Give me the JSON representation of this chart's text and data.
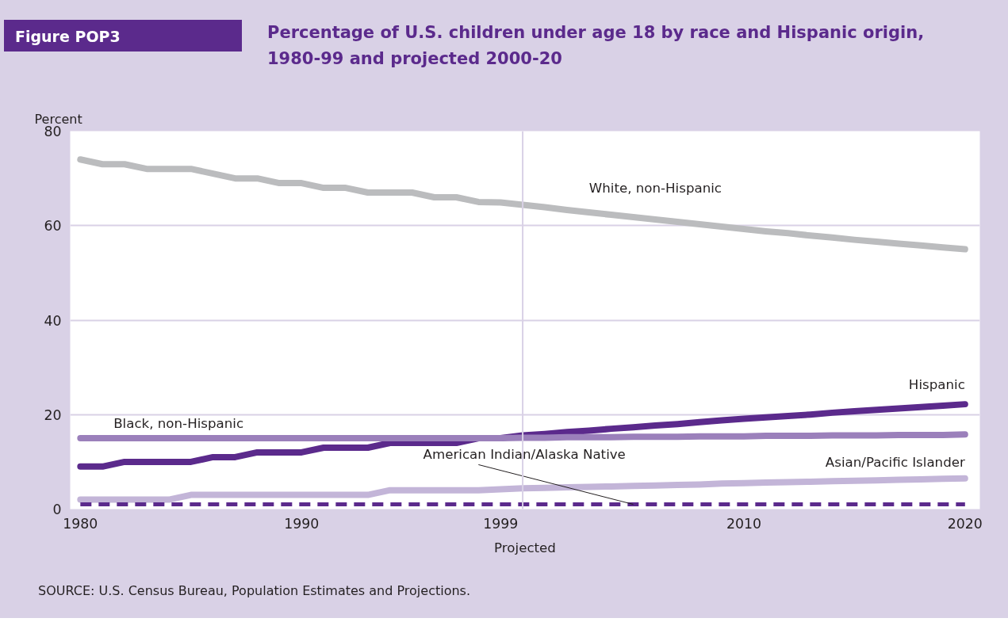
{
  "chart_data": {
    "type": "line",
    "subtitle": "Figure POP3",
    "title": "Percentage of U.S. children under age 18 by race and Hispanic origin, 1980-99 and projected 2000-20",
    "ylabel": "Percent",
    "x": [
      1980,
      1981,
      1982,
      1983,
      1984,
      1985,
      1986,
      1987,
      1988,
      1989,
      1990,
      1991,
      1992,
      1993,
      1994,
      1995,
      1996,
      1997,
      1998,
      1999,
      2000,
      2001,
      2002,
      2003,
      2004,
      2005,
      2006,
      2007,
      2008,
      2009,
      2010,
      2011,
      2012,
      2013,
      2014,
      2015,
      2016,
      2017,
      2018,
      2019,
      2020
    ],
    "xlim": [
      1979.54,
      2020.67
    ],
    "xticks": [
      1980,
      1990,
      1999,
      2010,
      2020
    ],
    "ylim": [
      0,
      80
    ],
    "yticks": [
      0,
      20,
      40,
      60,
      80
    ],
    "grid": "y",
    "legend": false,
    "series": [
      {
        "name": "White, non-Hispanic",
        "color": "#bbbcbe",
        "values": [
          74,
          73,
          73,
          72,
          72,
          72,
          71,
          70,
          70,
          69,
          69,
          68,
          68,
          67,
          67,
          67,
          66,
          66,
          65,
          64.9,
          64.4,
          63.9,
          63.3,
          62.8,
          62.3,
          61.8,
          61.3,
          60.8,
          60.3,
          59.8,
          59.3,
          58.8,
          58.4,
          57.9,
          57.5,
          57.0,
          56.6,
          56.2,
          55.8,
          55.4,
          55.0
        ]
      },
      {
        "name": "Hispanic",
        "color": "#5b2a8c",
        "values": [
          9,
          9,
          10,
          10,
          10,
          10,
          11,
          11,
          12,
          12,
          12,
          13,
          13,
          13,
          14,
          14,
          14,
          14,
          15,
          15,
          15.6,
          15.9,
          16.3,
          16.6,
          17.0,
          17.3,
          17.7,
          18.0,
          18.4,
          18.8,
          19.1,
          19.4,
          19.7,
          20.0,
          20.4,
          20.7,
          21.0,
          21.3,
          21.6,
          21.9,
          22.2
        ]
      },
      {
        "name": "Black, non-Hispanic",
        "color": "#9b80bb",
        "values": [
          15,
          15,
          15,
          15,
          15,
          15,
          15,
          15,
          15,
          15,
          15,
          15,
          15,
          15,
          15,
          15,
          15,
          15,
          15,
          15,
          15.1,
          15.1,
          15.2,
          15.2,
          15.2,
          15.3,
          15.3,
          15.3,
          15.4,
          15.4,
          15.4,
          15.5,
          15.5,
          15.5,
          15.6,
          15.6,
          15.6,
          15.7,
          15.7,
          15.7,
          15.8
        ]
      },
      {
        "name": "Asian/Pacific Islander",
        "color": "#c3b5d8",
        "values": [
          2,
          2,
          2,
          2,
          2,
          3,
          3,
          3,
          3,
          3,
          3,
          3,
          3,
          3,
          4,
          4,
          4,
          4,
          4,
          4.2,
          4.4,
          4.5,
          4.6,
          4.7,
          4.8,
          4.9,
          5.0,
          5.1,
          5.2,
          5.4,
          5.5,
          5.6,
          5.7,
          5.8,
          5.9,
          6.0,
          6.1,
          6.2,
          6.3,
          6.4,
          6.5
        ]
      },
      {
        "name": "American Indian/Alaska Native",
        "color": "#5b2a8c",
        "line_style": "dashed",
        "values": [
          1,
          1,
          1,
          1,
          1,
          1,
          1,
          1,
          1,
          1,
          1,
          1,
          1,
          1,
          1,
          1,
          1,
          1,
          1,
          1,
          1,
          1,
          1,
          1,
          1,
          1,
          1,
          1,
          1,
          1,
          1,
          1,
          1,
          1,
          1,
          1,
          1,
          1,
          1,
          1,
          1
        ]
      }
    ],
    "ref_lines": [
      {
        "axis": "x",
        "value": 2000,
        "color": "#d9d1e6"
      }
    ],
    "annotations": [
      "Projected",
      "SOURCE: U.S. Census Bureau, Population Estimates and Projections."
    ]
  }
}
